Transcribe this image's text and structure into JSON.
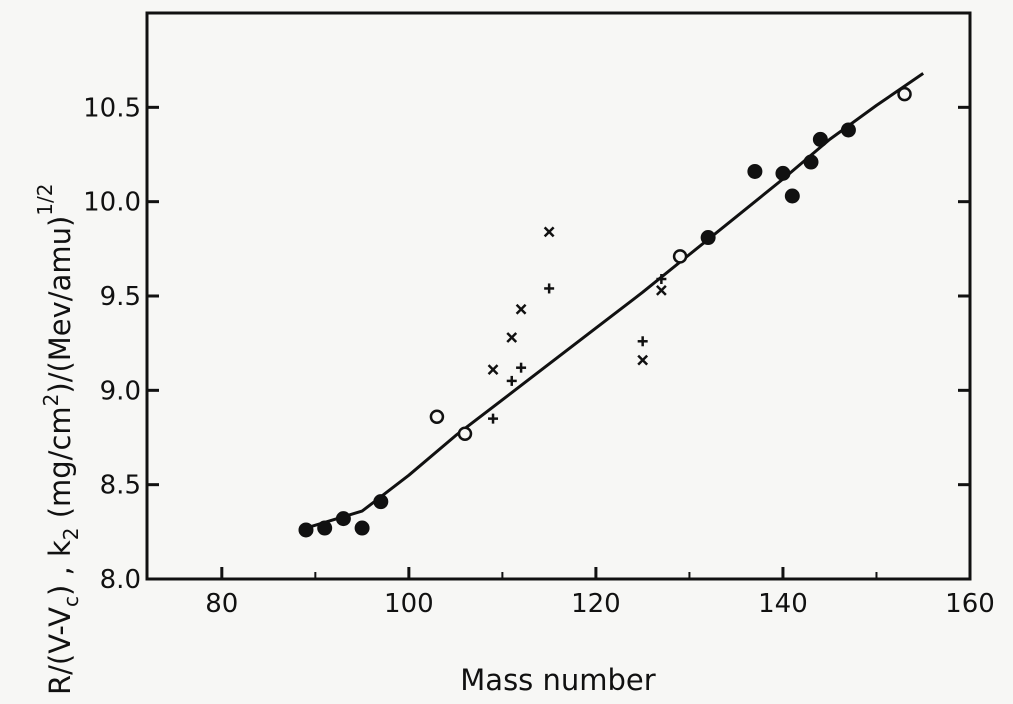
{
  "chart_data": {
    "type": "scatter",
    "title": "",
    "xlabel": "Mass number",
    "ylabel": "R/(V-Vₙ), k₂ (mg/cm²)/(Mev/amu)^1/2",
    "ylabel_parts": {
      "main": "R/(V-V",
      "sub_c": "c",
      "mid": ") , k",
      "sub_2": "2",
      "units_open": " (mg/cm",
      "sup_2": "2",
      "units_close": ")/(Mev/amu)",
      "exponent": "1/2"
    },
    "xlim": [
      72,
      160
    ],
    "ylim": [
      8.0,
      11.0
    ],
    "xticks": [
      "80",
      "100",
      "120",
      "140",
      "160"
    ],
    "xtick_values": [
      80,
      100,
      120,
      140,
      160
    ],
    "yticks": [
      "8.0",
      "8.5",
      "9.0",
      "9.5",
      "10.0",
      "10.5"
    ],
    "ytick_values": [
      8.0,
      8.5,
      9.0,
      9.5,
      10.0,
      10.5
    ],
    "grid": false,
    "series": [
      {
        "marker": "filled-circle",
        "x": [
          89,
          91,
          93,
          95,
          97,
          132,
          137,
          140,
          141,
          143,
          144,
          147
        ],
        "y": [
          8.26,
          8.27,
          8.32,
          8.27,
          8.41,
          9.81,
          10.16,
          10.15,
          10.03,
          10.21,
          10.33,
          10.38
        ]
      },
      {
        "marker": "open-circle",
        "x": [
          103,
          106,
          129,
          153
        ],
        "y": [
          8.86,
          8.77,
          9.71,
          10.57
        ]
      },
      {
        "marker": "x",
        "x": [
          109,
          111,
          112,
          115,
          125,
          127
        ],
        "y": [
          9.11,
          9.28,
          9.43,
          9.84,
          9.16,
          9.53
        ]
      },
      {
        "marker": "plus",
        "x": [
          109,
          111,
          112,
          115,
          125,
          127
        ],
        "y": [
          8.85,
          9.05,
          9.12,
          9.54,
          9.26,
          9.59
        ]
      }
    ],
    "fit_curve": {
      "x": [
        89,
        95,
        100,
        105,
        110,
        115,
        120,
        125,
        130,
        135,
        140,
        145,
        150,
        155
      ],
      "y": [
        8.27,
        8.36,
        8.55,
        8.76,
        8.95,
        9.14,
        9.33,
        9.52,
        9.72,
        9.92,
        10.12,
        10.33,
        10.51,
        10.68
      ]
    }
  }
}
